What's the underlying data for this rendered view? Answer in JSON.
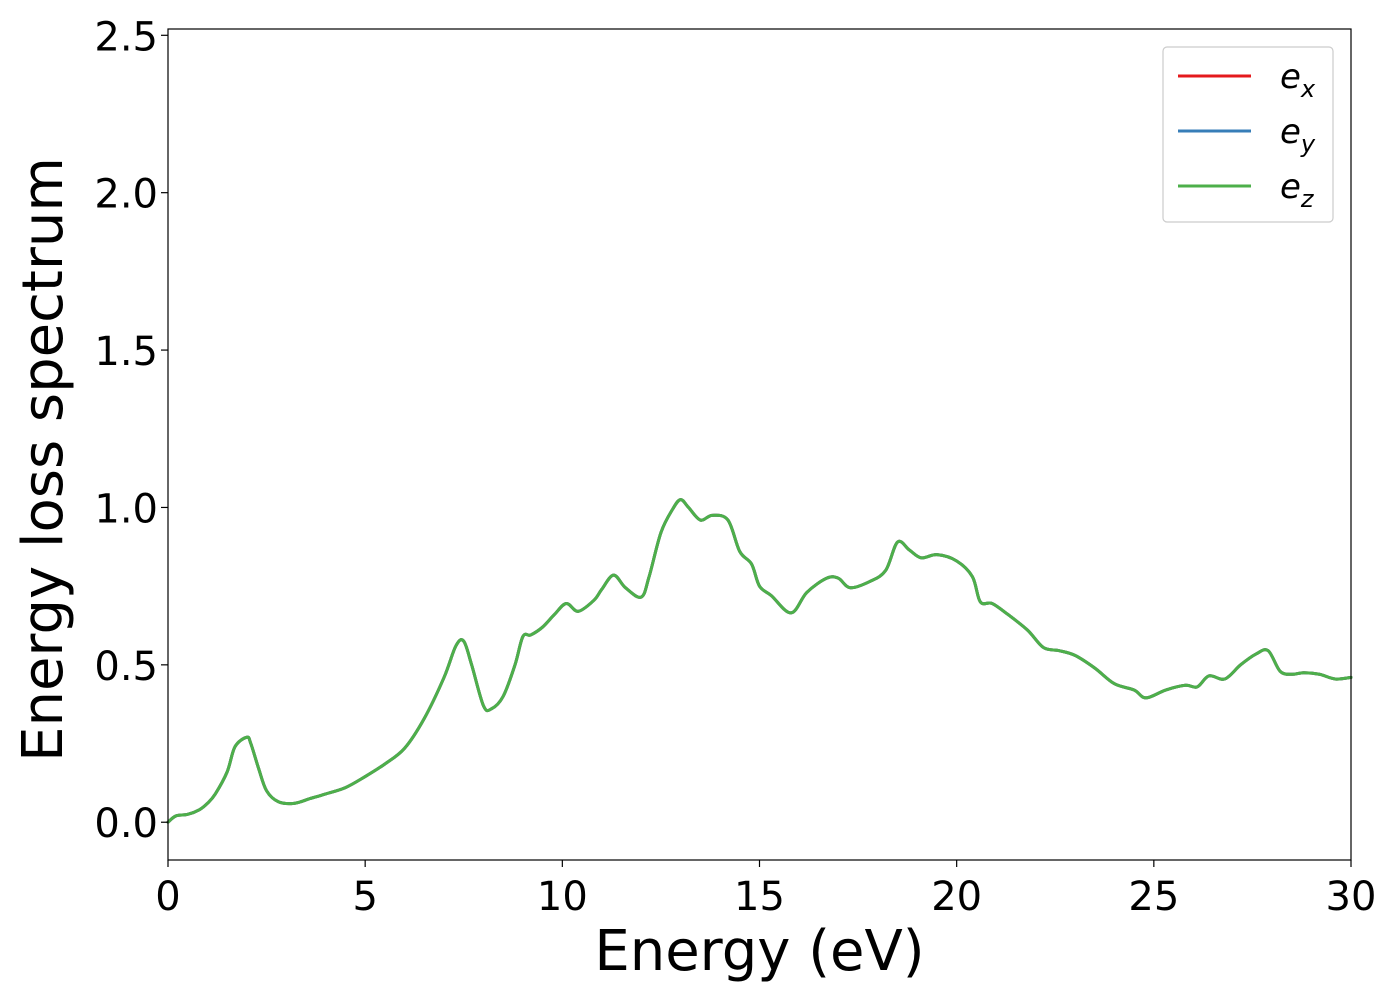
{
  "chart_data": {
    "type": "line",
    "title": "",
    "xlabel": "Energy (eV)",
    "ylabel": "Energy loss spectrum",
    "xlim": [
      0,
      30
    ],
    "ylim": [
      -0.12,
      2.52
    ],
    "xticks": [
      0,
      5,
      10,
      15,
      20,
      25,
      30
    ],
    "xtick_labels": [
      "0",
      "5",
      "10",
      "15",
      "20",
      "25",
      "30"
    ],
    "yticks": [
      0.0,
      0.5,
      1.0,
      1.5,
      2.0,
      2.5
    ],
    "ytick_labels": [
      "0.0",
      "0.5",
      "1.0",
      "1.5",
      "2.0",
      "2.5"
    ],
    "grid": false,
    "legend_position": "top-right",
    "x": [
      0.0,
      0.2,
      0.5,
      0.8,
      1.0,
      1.2,
      1.5,
      1.7,
      2.0,
      2.1,
      2.3,
      2.5,
      2.8,
      3.2,
      3.6,
      4.0,
      4.5,
      5.0,
      5.5,
      6.0,
      6.5,
      7.0,
      7.3,
      7.5,
      7.7,
      8.0,
      8.2,
      8.5,
      8.8,
      9.0,
      9.2,
      9.5,
      9.8,
      10.1,
      10.4,
      10.8,
      11.0,
      11.3,
      11.6,
      12.0,
      12.2,
      12.5,
      12.8,
      13.0,
      13.2,
      13.5,
      13.8,
      14.2,
      14.5,
      14.8,
      15.0,
      15.3,
      15.8,
      16.2,
      16.7,
      17.0,
      17.3,
      17.8,
      18.2,
      18.5,
      18.8,
      19.1,
      19.5,
      20.0,
      20.4,
      20.6,
      20.9,
      21.3,
      21.8,
      22.2,
      22.6,
      23.0,
      23.5,
      24.0,
      24.5,
      24.8,
      25.3,
      25.8,
      26.1,
      26.4,
      26.8,
      27.2,
      27.6,
      27.9,
      28.2,
      28.5,
      28.8,
      29.2,
      29.6,
      30.0
    ],
    "series": [
      {
        "name": "ex",
        "color": "#e41a1c",
        "values": [
          0.0,
          0.02,
          0.025,
          0.04,
          0.06,
          0.09,
          0.16,
          0.24,
          0.27,
          0.25,
          0.17,
          0.1,
          0.065,
          0.06,
          0.075,
          0.09,
          0.11,
          0.145,
          0.185,
          0.235,
          0.33,
          0.46,
          0.56,
          0.575,
          0.5,
          0.37,
          0.36,
          0.4,
          0.5,
          0.59,
          0.595,
          0.62,
          0.66,
          0.695,
          0.67,
          0.705,
          0.74,
          0.785,
          0.745,
          0.715,
          0.78,
          0.92,
          0.995,
          1.025,
          1.0,
          0.96,
          0.975,
          0.96,
          0.86,
          0.82,
          0.75,
          0.72,
          0.665,
          0.73,
          0.775,
          0.775,
          0.745,
          0.765,
          0.8,
          0.89,
          0.865,
          0.84,
          0.85,
          0.83,
          0.78,
          0.7,
          0.695,
          0.66,
          0.61,
          0.555,
          0.545,
          0.53,
          0.49,
          0.44,
          0.42,
          0.395,
          0.42,
          0.435,
          0.43,
          0.465,
          0.455,
          0.5,
          0.535,
          0.545,
          0.48,
          0.47,
          0.475,
          0.47,
          0.455,
          0.46
        ]
      },
      {
        "name": "ey",
        "color": "#377eb8",
        "values": [
          0.0,
          0.02,
          0.025,
          0.04,
          0.06,
          0.09,
          0.16,
          0.24,
          0.27,
          0.25,
          0.17,
          0.1,
          0.065,
          0.06,
          0.075,
          0.09,
          0.11,
          0.145,
          0.185,
          0.235,
          0.33,
          0.46,
          0.56,
          0.575,
          0.5,
          0.37,
          0.36,
          0.4,
          0.5,
          0.59,
          0.595,
          0.62,
          0.66,
          0.695,
          0.67,
          0.705,
          0.74,
          0.785,
          0.745,
          0.715,
          0.78,
          0.92,
          0.995,
          1.025,
          1.0,
          0.96,
          0.975,
          0.96,
          0.86,
          0.82,
          0.75,
          0.72,
          0.665,
          0.73,
          0.775,
          0.775,
          0.745,
          0.765,
          0.8,
          0.89,
          0.865,
          0.84,
          0.85,
          0.83,
          0.78,
          0.7,
          0.695,
          0.66,
          0.61,
          0.555,
          0.545,
          0.53,
          0.49,
          0.44,
          0.42,
          0.395,
          0.42,
          0.435,
          0.43,
          0.465,
          0.455,
          0.5,
          0.535,
          0.545,
          0.48,
          0.47,
          0.475,
          0.47,
          0.455,
          0.46
        ]
      },
      {
        "name": "ez",
        "color": "#4daf4a",
        "values": [
          0.0,
          0.02,
          0.025,
          0.04,
          0.06,
          0.09,
          0.16,
          0.24,
          0.27,
          0.25,
          0.17,
          0.1,
          0.065,
          0.06,
          0.075,
          0.09,
          0.11,
          0.145,
          0.185,
          0.235,
          0.33,
          0.46,
          0.56,
          0.575,
          0.5,
          0.37,
          0.36,
          0.4,
          0.5,
          0.59,
          0.595,
          0.62,
          0.66,
          0.695,
          0.67,
          0.705,
          0.74,
          0.785,
          0.745,
          0.715,
          0.78,
          0.92,
          0.995,
          1.025,
          1.0,
          0.96,
          0.975,
          0.96,
          0.86,
          0.82,
          0.75,
          0.72,
          0.665,
          0.73,
          0.775,
          0.775,
          0.745,
          0.765,
          0.8,
          0.89,
          0.865,
          0.84,
          0.85,
          0.83,
          0.78,
          0.7,
          0.695,
          0.66,
          0.61,
          0.555,
          0.545,
          0.53,
          0.49,
          0.44,
          0.42,
          0.395,
          0.42,
          0.435,
          0.43,
          0.465,
          0.455,
          0.5,
          0.535,
          0.545,
          0.48,
          0.47,
          0.475,
          0.47,
          0.455,
          0.46
        ]
      }
    ],
    "legend": [
      {
        "base": "e",
        "sub": "x",
        "color": "#e41a1c"
      },
      {
        "base": "e",
        "sub": "y",
        "color": "#377eb8"
      },
      {
        "base": "e",
        "sub": "z",
        "color": "#4daf4a"
      }
    ]
  }
}
